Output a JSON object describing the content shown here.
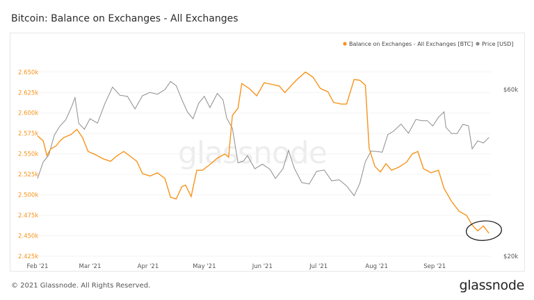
{
  "title": "Bitcoin: Balance on Exchanges - All Exchanges",
  "footer_copyright": "© 2021 Glassnode. All Rights Reserved.",
  "footer_logo": "glassnode",
  "watermark": "glassnode",
  "colors": {
    "balance": "#f7931a",
    "price": "#8c8c8c",
    "annotation": "#111111"
  },
  "chart_data": {
    "type": "line",
    "legend": [
      "Balance on Exchanges - All Exchanges [BTC]",
      "Price [USD]"
    ],
    "legend_position": "top-right",
    "x_ticks": [
      "Feb '21",
      "Mar '21",
      "Apr '21",
      "May '21",
      "Jun '21",
      "Jul '21",
      "Aug '21",
      "Sep '21"
    ],
    "y_left": {
      "ticks": [
        "2.650k",
        "2.625k",
        "2.600k",
        "2.575k",
        "2.550k",
        "2.525k",
        "2.500k",
        "2.475k",
        "2.450k",
        "2.425k"
      ],
      "range": [
        2425,
        2660
      ]
    },
    "y_right": {
      "ticks": [
        "$60k",
        "$20k"
      ]
    },
    "series": [
      {
        "name": "Balance on Exchanges - All Exchanges [BTC]",
        "axis": "left",
        "points": [
          [
            "2021-02-01",
            2572
          ],
          [
            "2021-02-04",
            2566
          ],
          [
            "2021-02-06",
            2548
          ],
          [
            "2021-02-08",
            2556
          ],
          [
            "2021-02-11",
            2560
          ],
          [
            "2021-02-13",
            2566
          ],
          [
            "2021-02-15",
            2570
          ],
          [
            "2021-02-19",
            2574
          ],
          [
            "2021-02-22",
            2580
          ],
          [
            "2021-02-25",
            2570
          ],
          [
            "2021-02-28",
            2553
          ],
          [
            "2021-03-04",
            2549
          ],
          [
            "2021-03-08",
            2544
          ],
          [
            "2021-03-12",
            2541
          ],
          [
            "2021-03-15",
            2547
          ],
          [
            "2021-03-19",
            2553
          ],
          [
            "2021-03-22",
            2548
          ],
          [
            "2021-03-26",
            2541
          ],
          [
            "2021-03-29",
            2526
          ],
          [
            "2021-04-02",
            2523
          ],
          [
            "2021-04-06",
            2527
          ],
          [
            "2021-04-10",
            2520
          ],
          [
            "2021-04-13",
            2497
          ],
          [
            "2021-04-16",
            2495
          ],
          [
            "2021-04-19",
            2510
          ],
          [
            "2021-04-21",
            2512
          ],
          [
            "2021-04-24",
            2498
          ],
          [
            "2021-04-27",
            2530
          ],
          [
            "2021-04-30",
            2530
          ],
          [
            "2021-05-04",
            2537
          ],
          [
            "2021-05-08",
            2545
          ],
          [
            "2021-05-12",
            2550
          ],
          [
            "2021-05-14",
            2546
          ],
          [
            "2021-05-16",
            2597
          ],
          [
            "2021-05-19",
            2606
          ],
          [
            "2021-05-21",
            2636
          ],
          [
            "2021-05-25",
            2630
          ],
          [
            "2021-05-29",
            2621
          ],
          [
            "2021-06-02",
            2637
          ],
          [
            "2021-06-06",
            2635
          ],
          [
            "2021-06-10",
            2633
          ],
          [
            "2021-06-13",
            2625
          ],
          [
            "2021-06-17",
            2635
          ],
          [
            "2021-06-20",
            2642
          ],
          [
            "2021-06-24",
            2650
          ],
          [
            "2021-06-28",
            2644
          ],
          [
            "2021-07-02",
            2630
          ],
          [
            "2021-07-06",
            2626
          ],
          [
            "2021-07-09",
            2613
          ],
          [
            "2021-07-13",
            2611
          ],
          [
            "2021-07-16",
            2611
          ],
          [
            "2021-07-20",
            2641
          ],
          [
            "2021-07-23",
            2640
          ],
          [
            "2021-07-26",
            2634
          ],
          [
            "2021-07-28",
            2557
          ],
          [
            "2021-07-31",
            2535
          ],
          [
            "2021-08-03",
            2528
          ],
          [
            "2021-08-06",
            2538
          ],
          [
            "2021-08-09",
            2530
          ],
          [
            "2021-08-13",
            2534
          ],
          [
            "2021-08-17",
            2540
          ],
          [
            "2021-08-20",
            2550
          ],
          [
            "2021-08-23",
            2553
          ],
          [
            "2021-08-26",
            2532
          ],
          [
            "2021-08-30",
            2527
          ],
          [
            "2021-09-03",
            2530
          ],
          [
            "2021-09-06",
            2508
          ],
          [
            "2021-09-10",
            2492
          ],
          [
            "2021-09-14",
            2480
          ],
          [
            "2021-09-18",
            2475
          ],
          [
            "2021-09-21",
            2463
          ],
          [
            "2021-09-24",
            2456
          ],
          [
            "2021-09-27",
            2462
          ],
          [
            "2021-09-30",
            2453
          ]
        ]
      },
      {
        "name": "Price [USD]",
        "axis": "right",
        "points": [
          [
            "2021-02-01",
            33400
          ],
          [
            "2021-02-04",
            37200
          ],
          [
            "2021-02-07",
            39000
          ],
          [
            "2021-02-10",
            44500
          ],
          [
            "2021-02-13",
            47200
          ],
          [
            "2021-02-16",
            49100
          ],
          [
            "2021-02-19",
            53300
          ],
          [
            "2021-02-21",
            56900
          ],
          [
            "2021-02-23",
            48000
          ],
          [
            "2021-02-26",
            46200
          ],
          [
            "2021-03-01",
            49500
          ],
          [
            "2021-03-05",
            48100
          ],
          [
            "2021-03-09",
            54800
          ],
          [
            "2021-03-13",
            61000
          ],
          [
            "2021-03-17",
            57800
          ],
          [
            "2021-03-21",
            57400
          ],
          [
            "2021-03-25",
            52800
          ],
          [
            "2021-03-29",
            57600
          ],
          [
            "2021-04-02",
            58900
          ],
          [
            "2021-04-06",
            58200
          ],
          [
            "2021-04-10",
            60000
          ],
          [
            "2021-04-13",
            63300
          ],
          [
            "2021-04-16",
            61600
          ],
          [
            "2021-04-19",
            56200
          ],
          [
            "2021-04-22",
            51800
          ],
          [
            "2021-04-25",
            49500
          ],
          [
            "2021-04-28",
            54800
          ],
          [
            "2021-05-01",
            57400
          ],
          [
            "2021-05-04",
            53300
          ],
          [
            "2021-05-08",
            58500
          ],
          [
            "2021-05-11",
            56100
          ],
          [
            "2021-05-13",
            49700
          ],
          [
            "2021-05-16",
            46500
          ],
          [
            "2021-05-19",
            37000
          ],
          [
            "2021-05-22",
            37500
          ],
          [
            "2021-05-24",
            38800
          ],
          [
            "2021-05-28",
            35600
          ],
          [
            "2021-06-01",
            36700
          ],
          [
            "2021-06-05",
            35500
          ],
          [
            "2021-06-08",
            33400
          ],
          [
            "2021-06-12",
            35600
          ],
          [
            "2021-06-15",
            40200
          ],
          [
            "2021-06-18",
            35800
          ],
          [
            "2021-06-22",
            32500
          ],
          [
            "2021-06-26",
            32200
          ],
          [
            "2021-06-30",
            35000
          ],
          [
            "2021-07-04",
            35300
          ],
          [
            "2021-07-08",
            32900
          ],
          [
            "2021-07-12",
            33100
          ],
          [
            "2021-07-16",
            31800
          ],
          [
            "2021-07-20",
            29800
          ],
          [
            "2021-07-23",
            32300
          ],
          [
            "2021-07-26",
            37300
          ],
          [
            "2021-07-29",
            40000
          ],
          [
            "2021-08-01",
            39900
          ],
          [
            "2021-08-04",
            39700
          ],
          [
            "2021-08-07",
            44600
          ],
          [
            "2021-08-10",
            45600
          ],
          [
            "2021-08-14",
            47800
          ],
          [
            "2021-08-18",
            45000
          ],
          [
            "2021-08-22",
            49300
          ],
          [
            "2021-08-25",
            48900
          ],
          [
            "2021-08-28",
            48900
          ],
          [
            "2021-08-31",
            47200
          ],
          [
            "2021-09-03",
            50000
          ],
          [
            "2021-09-06",
            51800
          ],
          [
            "2021-09-07",
            46800
          ],
          [
            "2021-09-10",
            44900
          ],
          [
            "2021-09-13",
            44900
          ],
          [
            "2021-09-16",
            47700
          ],
          [
            "2021-09-19",
            47300
          ],
          [
            "2021-09-21",
            40600
          ],
          [
            "2021-09-24",
            42800
          ],
          [
            "2021-09-27",
            42200
          ],
          [
            "2021-09-30",
            43800
          ]
        ]
      }
    ],
    "annotation": {
      "type": "hand-drawn circle",
      "around": [
        "2021-09-23",
        "2021-09-30"
      ]
    }
  }
}
